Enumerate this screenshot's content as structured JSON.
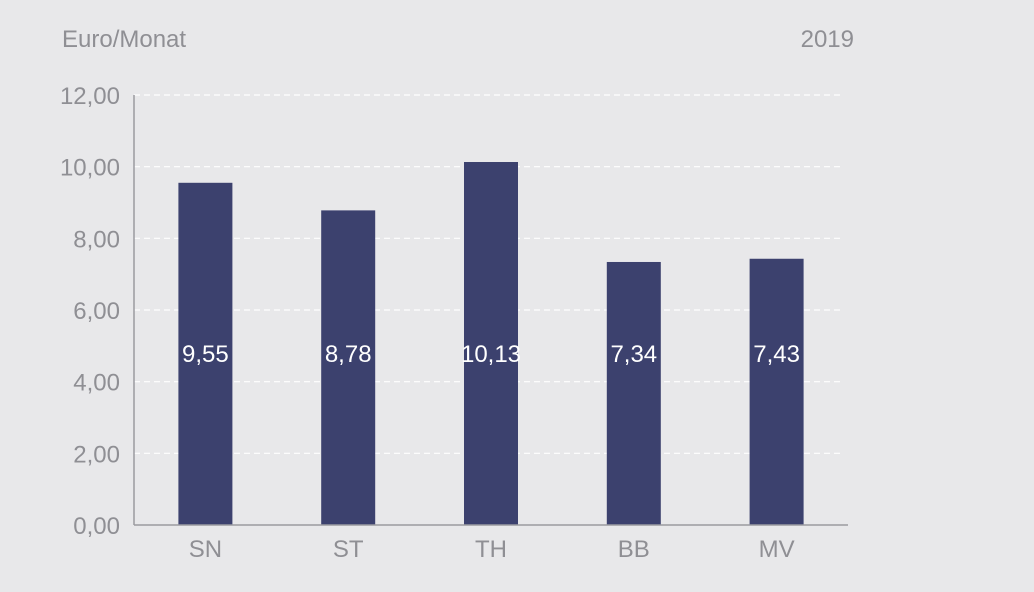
{
  "chart_data": {
    "type": "bar",
    "unit_label": "Euro/Monat",
    "year_label": "2019",
    "categories": [
      "SN",
      "ST",
      "TH",
      "BB",
      "MV"
    ],
    "values": [
      9.55,
      8.78,
      10.13,
      7.34,
      7.43
    ],
    "value_labels": [
      "9,55",
      "8,78",
      "10,13",
      "7,34",
      "7,43"
    ],
    "y_ticks": [
      0,
      2,
      4,
      6,
      8,
      10,
      12
    ],
    "y_tick_labels": [
      "0,00",
      "2,00",
      "4,00",
      "6,00",
      "8,00",
      "10,00",
      "12,00"
    ],
    "ylim": [
      0,
      12
    ],
    "grid": true,
    "grid_style": "dashed",
    "bar_color": "#3c416e",
    "axis_color": "#9a9aa0",
    "grid_color": "#ffffff",
    "text_color": "#8f8f94",
    "value_label_color": "#ffffff"
  }
}
